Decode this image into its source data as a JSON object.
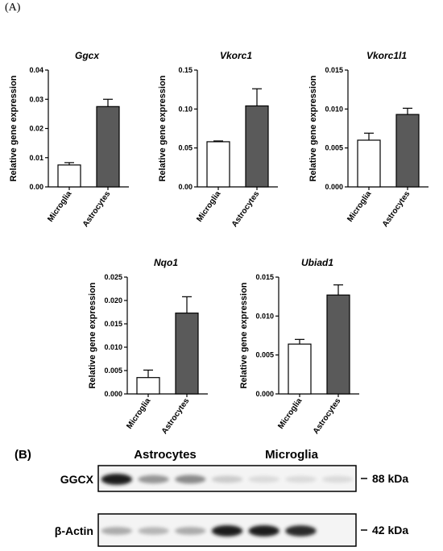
{
  "panel_labels": {
    "a": "(A)",
    "b": "(B)"
  },
  "chart_data": [
    {
      "type": "bar",
      "title": "Ggcx",
      "ylabel": "Relative gene expression",
      "categories": [
        "Microglia",
        "Astrocytes"
      ],
      "values": [
        0.0075,
        0.0275
      ],
      "errors": [
        0.0008,
        0.0025
      ],
      "ylim": [
        0,
        0.04
      ],
      "yticks": [
        "0.00",
        "0.01",
        "0.02",
        "0.03",
        "0.04"
      ],
      "colors": [
        "#ffffff",
        "#5a5a5a"
      ],
      "grid": false
    },
    {
      "type": "bar",
      "title": "Vkorc1",
      "ylabel": "Relative gene expression",
      "categories": [
        "Microglia",
        "Astrocytes"
      ],
      "values": [
        0.058,
        0.104
      ],
      "errors": [
        0.001,
        0.022
      ],
      "ylim": [
        0,
        0.15
      ],
      "yticks": [
        "0.00",
        "0.05",
        "0.10",
        "0.15"
      ],
      "colors": [
        "#ffffff",
        "#5a5a5a"
      ],
      "grid": false
    },
    {
      "type": "bar",
      "title": "Vkorc1l1",
      "ylabel": "Relative gene expression",
      "categories": [
        "Microglia",
        "Astrocytes"
      ],
      "values": [
        0.006,
        0.0093
      ],
      "errors": [
        0.0009,
        0.0008
      ],
      "ylim": [
        0,
        0.015
      ],
      "yticks": [
        "0.000",
        "0.005",
        "0.010",
        "0.015"
      ],
      "colors": [
        "#ffffff",
        "#5a5a5a"
      ],
      "grid": false
    },
    {
      "type": "bar",
      "title": "Nqo1",
      "ylabel": "Relative gene expression",
      "categories": [
        "Microglia",
        "Astrocytes"
      ],
      "values": [
        0.0035,
        0.0173
      ],
      "errors": [
        0.0016,
        0.0035
      ],
      "ylim": [
        0,
        0.025
      ],
      "yticks": [
        "0.000",
        "0.005",
        "0.010",
        "0.015",
        "0.020",
        "0.025"
      ],
      "colors": [
        "#ffffff",
        "#5a5a5a"
      ],
      "grid": false
    },
    {
      "type": "bar",
      "title": "Ubiad1",
      "ylabel": "Relative gene expression",
      "categories": [
        "Microglia",
        "Astrocytes"
      ],
      "values": [
        0.0064,
        0.0127
      ],
      "errors": [
        0.0006,
        0.0013
      ],
      "ylim": [
        0,
        0.015
      ],
      "yticks": [
        "0.000",
        "0.005",
        "0.010",
        "0.015"
      ],
      "colors": [
        "#ffffff",
        "#5a5a5a"
      ],
      "grid": false
    }
  ],
  "blot": {
    "group_labels": [
      "Astrocytes",
      "Microglia"
    ],
    "rows": [
      {
        "label": "GGCX",
        "size": "88 kDa",
        "band_intensities": [
          0.95,
          0.4,
          0.45,
          0.15,
          0.08,
          0.08,
          0.08
        ]
      },
      {
        "label": "β-Actin",
        "size": "42 kDa",
        "band_intensities": [
          0.3,
          0.25,
          0.3,
          0.95,
          0.95,
          0.9,
          0.0
        ]
      }
    ]
  }
}
